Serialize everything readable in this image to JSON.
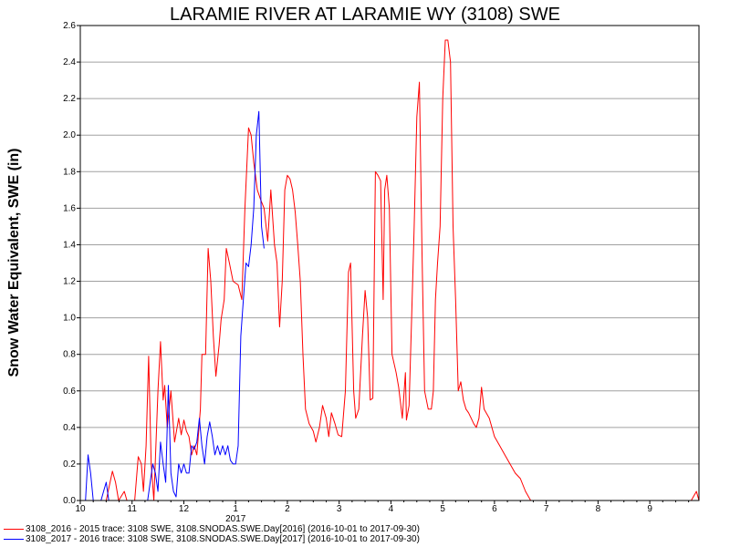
{
  "chart_data": {
    "type": "line",
    "title": "LARAMIE RIVER AT LARAMIE WY (3108) SWE",
    "ylabel": "Snow Water Equivalent, SWE (in)",
    "xlabel": "",
    "xlim": [
      10.0,
      9.95
    ],
    "ylim": [
      0.0,
      2.6
    ],
    "grid": true,
    "x_ticks": [
      "10",
      "11",
      "12",
      "1",
      "2",
      "3",
      "4",
      "5",
      "6",
      "7",
      "8",
      "9"
    ],
    "x_year_label": "2017",
    "y_ticks": [
      "0.0",
      "0.2",
      "0.4",
      "0.6",
      "0.8",
      "1.0",
      "1.2",
      "1.4",
      "1.6",
      "1.8",
      "2.0",
      "2.2",
      "2.4",
      "2.6"
    ],
    "legend_placement": "bottom-left",
    "series": [
      {
        "name": "3108_2016 - 2015 trace: 3108 SWE, 3108.SNODAS.SWE.Day[2016] (2016-10-01 to 2017-09-30)",
        "color": "#ff0000",
        "points": [
          [
            10.0,
            0
          ],
          [
            10.5,
            0
          ],
          [
            10.62,
            0.16
          ],
          [
            10.68,
            0.1
          ],
          [
            10.74,
            0
          ],
          [
            10.85,
            0.05
          ],
          [
            10.9,
            0
          ],
          [
            11.05,
            0
          ],
          [
            11.12,
            0.24
          ],
          [
            11.18,
            0.2
          ],
          [
            11.22,
            0.05
          ],
          [
            11.27,
            0.3
          ],
          [
            11.32,
            0.79
          ],
          [
            11.37,
            0.2
          ],
          [
            11.42,
            0
          ],
          [
            11.5,
            0.6
          ],
          [
            11.55,
            0.87
          ],
          [
            11.6,
            0.55
          ],
          [
            11.63,
            0.63
          ],
          [
            11.68,
            0.4
          ],
          [
            11.75,
            0.6
          ],
          [
            11.82,
            0.32
          ],
          [
            11.9,
            0.45
          ],
          [
            11.95,
            0.36
          ],
          [
            12.0,
            0.44
          ],
          [
            12.05,
            0.38
          ],
          [
            12.1,
            0.35
          ],
          [
            12.15,
            0.25
          ],
          [
            12.2,
            0.3
          ],
          [
            12.25,
            0.25
          ],
          [
            12.32,
            0.5
          ],
          [
            12.35,
            0.8
          ],
          [
            12.42,
            0.8
          ],
          [
            12.47,
            1.38
          ],
          [
            12.52,
            1.2
          ],
          [
            12.57,
            0.9
          ],
          [
            12.62,
            0.68
          ],
          [
            12.68,
            0.85
          ],
          [
            12.72,
            0.99
          ],
          [
            12.78,
            1.1
          ],
          [
            12.82,
            1.38
          ],
          [
            12.88,
            1.3
          ],
          [
            12.95,
            1.2
          ],
          [
            13.05,
            1.18
          ],
          [
            13.12,
            1.1
          ],
          [
            13.18,
            1.6
          ],
          [
            13.25,
            2.04
          ],
          [
            13.3,
            2.0
          ],
          [
            13.35,
            1.85
          ],
          [
            13.42,
            1.7
          ],
          [
            13.48,
            1.65
          ],
          [
            13.55,
            1.6
          ],
          [
            13.62,
            1.42
          ],
          [
            13.68,
            1.7
          ],
          [
            13.75,
            1.4
          ],
          [
            13.8,
            1.3
          ],
          [
            13.85,
            0.95
          ],
          [
            13.9,
            1.2
          ],
          [
            13.95,
            1.7
          ],
          [
            14.0,
            1.78
          ],
          [
            14.05,
            1.76
          ],
          [
            14.1,
            1.7
          ],
          [
            14.15,
            1.58
          ],
          [
            14.2,
            1.4
          ],
          [
            14.25,
            1.2
          ],
          [
            14.3,
            0.8
          ],
          [
            14.35,
            0.5
          ],
          [
            14.42,
            0.42
          ],
          [
            14.5,
            0.38
          ],
          [
            14.55,
            0.32
          ],
          [
            14.62,
            0.4
          ],
          [
            14.68,
            0.52
          ],
          [
            14.75,
            0.45
          ],
          [
            14.8,
            0.35
          ],
          [
            14.85,
            0.48
          ],
          [
            14.92,
            0.42
          ],
          [
            14.98,
            0.36
          ],
          [
            15.05,
            0.35
          ],
          [
            15.12,
            0.6
          ],
          [
            15.18,
            1.25
          ],
          [
            15.22,
            1.3
          ],
          [
            15.28,
            0.6
          ],
          [
            15.32,
            0.45
          ],
          [
            15.38,
            0.5
          ],
          [
            15.45,
            0.9
          ],
          [
            15.5,
            1.15
          ],
          [
            15.55,
            1.0
          ],
          [
            15.6,
            0.55
          ],
          [
            15.65,
            0.56
          ],
          [
            15.7,
            1.8
          ],
          [
            15.75,
            1.78
          ],
          [
            15.8,
            1.75
          ],
          [
            15.85,
            1.1
          ],
          [
            15.88,
            1.7
          ],
          [
            15.92,
            1.78
          ],
          [
            15.97,
            1.6
          ],
          [
            16.02,
            0.8
          ],
          [
            16.1,
            0.7
          ],
          [
            16.15,
            0.62
          ],
          [
            16.22,
            0.45
          ],
          [
            16.28,
            0.7
          ],
          [
            16.3,
            0.44
          ],
          [
            16.35,
            0.52
          ],
          [
            16.4,
            1.0
          ],
          [
            16.45,
            1.5
          ],
          [
            16.5,
            2.1
          ],
          [
            16.55,
            2.29
          ],
          [
            16.6,
            1.35
          ],
          [
            16.65,
            0.6
          ],
          [
            16.72,
            0.5
          ],
          [
            16.78,
            0.5
          ],
          [
            16.82,
            0.6
          ],
          [
            16.86,
            1.1
          ],
          [
            16.9,
            1.3
          ],
          [
            16.95,
            1.5
          ],
          [
            17.0,
            2.2
          ],
          [
            17.05,
            2.52
          ],
          [
            17.1,
            2.52
          ],
          [
            17.15,
            2.4
          ],
          [
            17.2,
            1.5
          ],
          [
            17.25,
            1.1
          ],
          [
            17.3,
            0.6
          ],
          [
            17.35,
            0.65
          ],
          [
            17.4,
            0.55
          ],
          [
            17.45,
            0.5
          ],
          [
            17.5,
            0.48
          ],
          [
            17.55,
            0.45
          ],
          [
            17.6,
            0.42
          ],
          [
            17.65,
            0.4
          ],
          [
            17.7,
            0.45
          ],
          [
            17.75,
            0.62
          ],
          [
            17.8,
            0.5
          ],
          [
            17.9,
            0.45
          ],
          [
            18.0,
            0.35
          ],
          [
            18.1,
            0.3
          ],
          [
            18.2,
            0.25
          ],
          [
            18.3,
            0.2
          ],
          [
            18.4,
            0.15
          ],
          [
            18.5,
            0.12
          ],
          [
            18.6,
            0.05
          ],
          [
            18.7,
            0
          ],
          [
            19.0,
            0
          ],
          [
            21.8,
            0
          ],
          [
            21.9,
            0.05
          ],
          [
            21.95,
            0
          ]
        ]
      },
      {
        "name": "3108_2017 - 2016 trace: 3108 SWE, 3108.SNODAS.SWE.Day[2017] (2016-10-01 to 2017-09-30)",
        "color": "#0000ff",
        "points": [
          [
            10.0,
            0
          ],
          [
            10.1,
            0
          ],
          [
            10.15,
            0.25
          ],
          [
            10.2,
            0.15
          ],
          [
            10.25,
            0
          ],
          [
            10.4,
            0
          ],
          [
            10.45,
            0.05
          ],
          [
            10.5,
            0.1
          ],
          [
            10.55,
            0
          ],
          [
            11.0,
            0
          ],
          [
            11.3,
            0
          ],
          [
            11.4,
            0.2
          ],
          [
            11.45,
            0.15
          ],
          [
            11.5,
            0.05
          ],
          [
            11.55,
            0.32
          ],
          [
            11.6,
            0.2
          ],
          [
            11.65,
            0.1
          ],
          [
            11.7,
            0.63
          ],
          [
            11.75,
            0.15
          ],
          [
            11.8,
            0.05
          ],
          [
            11.85,
            0.02
          ],
          [
            11.9,
            0.2
          ],
          [
            11.95,
            0.15
          ],
          [
            12.0,
            0.2
          ],
          [
            12.05,
            0.15
          ],
          [
            12.1,
            0.15
          ],
          [
            12.15,
            0.3
          ],
          [
            12.2,
            0.28
          ],
          [
            12.25,
            0.32
          ],
          [
            12.3,
            0.45
          ],
          [
            12.35,
            0.3
          ],
          [
            12.4,
            0.2
          ],
          [
            12.45,
            0.35
          ],
          [
            12.5,
            0.43
          ],
          [
            12.55,
            0.35
          ],
          [
            12.6,
            0.25
          ],
          [
            12.65,
            0.3
          ],
          [
            12.7,
            0.25
          ],
          [
            12.75,
            0.3
          ],
          [
            12.8,
            0.25
          ],
          [
            12.85,
            0.3
          ],
          [
            12.9,
            0.22
          ],
          [
            12.95,
            0.2
          ],
          [
            13.0,
            0.2
          ],
          [
            13.05,
            0.3
          ],
          [
            13.1,
            0.9
          ],
          [
            13.15,
            1.1
          ],
          [
            13.2,
            1.3
          ],
          [
            13.25,
            1.28
          ],
          [
            13.3,
            1.4
          ],
          [
            13.35,
            1.6
          ],
          [
            13.4,
            2.0
          ],
          [
            13.45,
            2.13
          ],
          [
            13.5,
            1.5
          ],
          [
            13.55,
            1.38
          ]
        ]
      }
    ]
  }
}
